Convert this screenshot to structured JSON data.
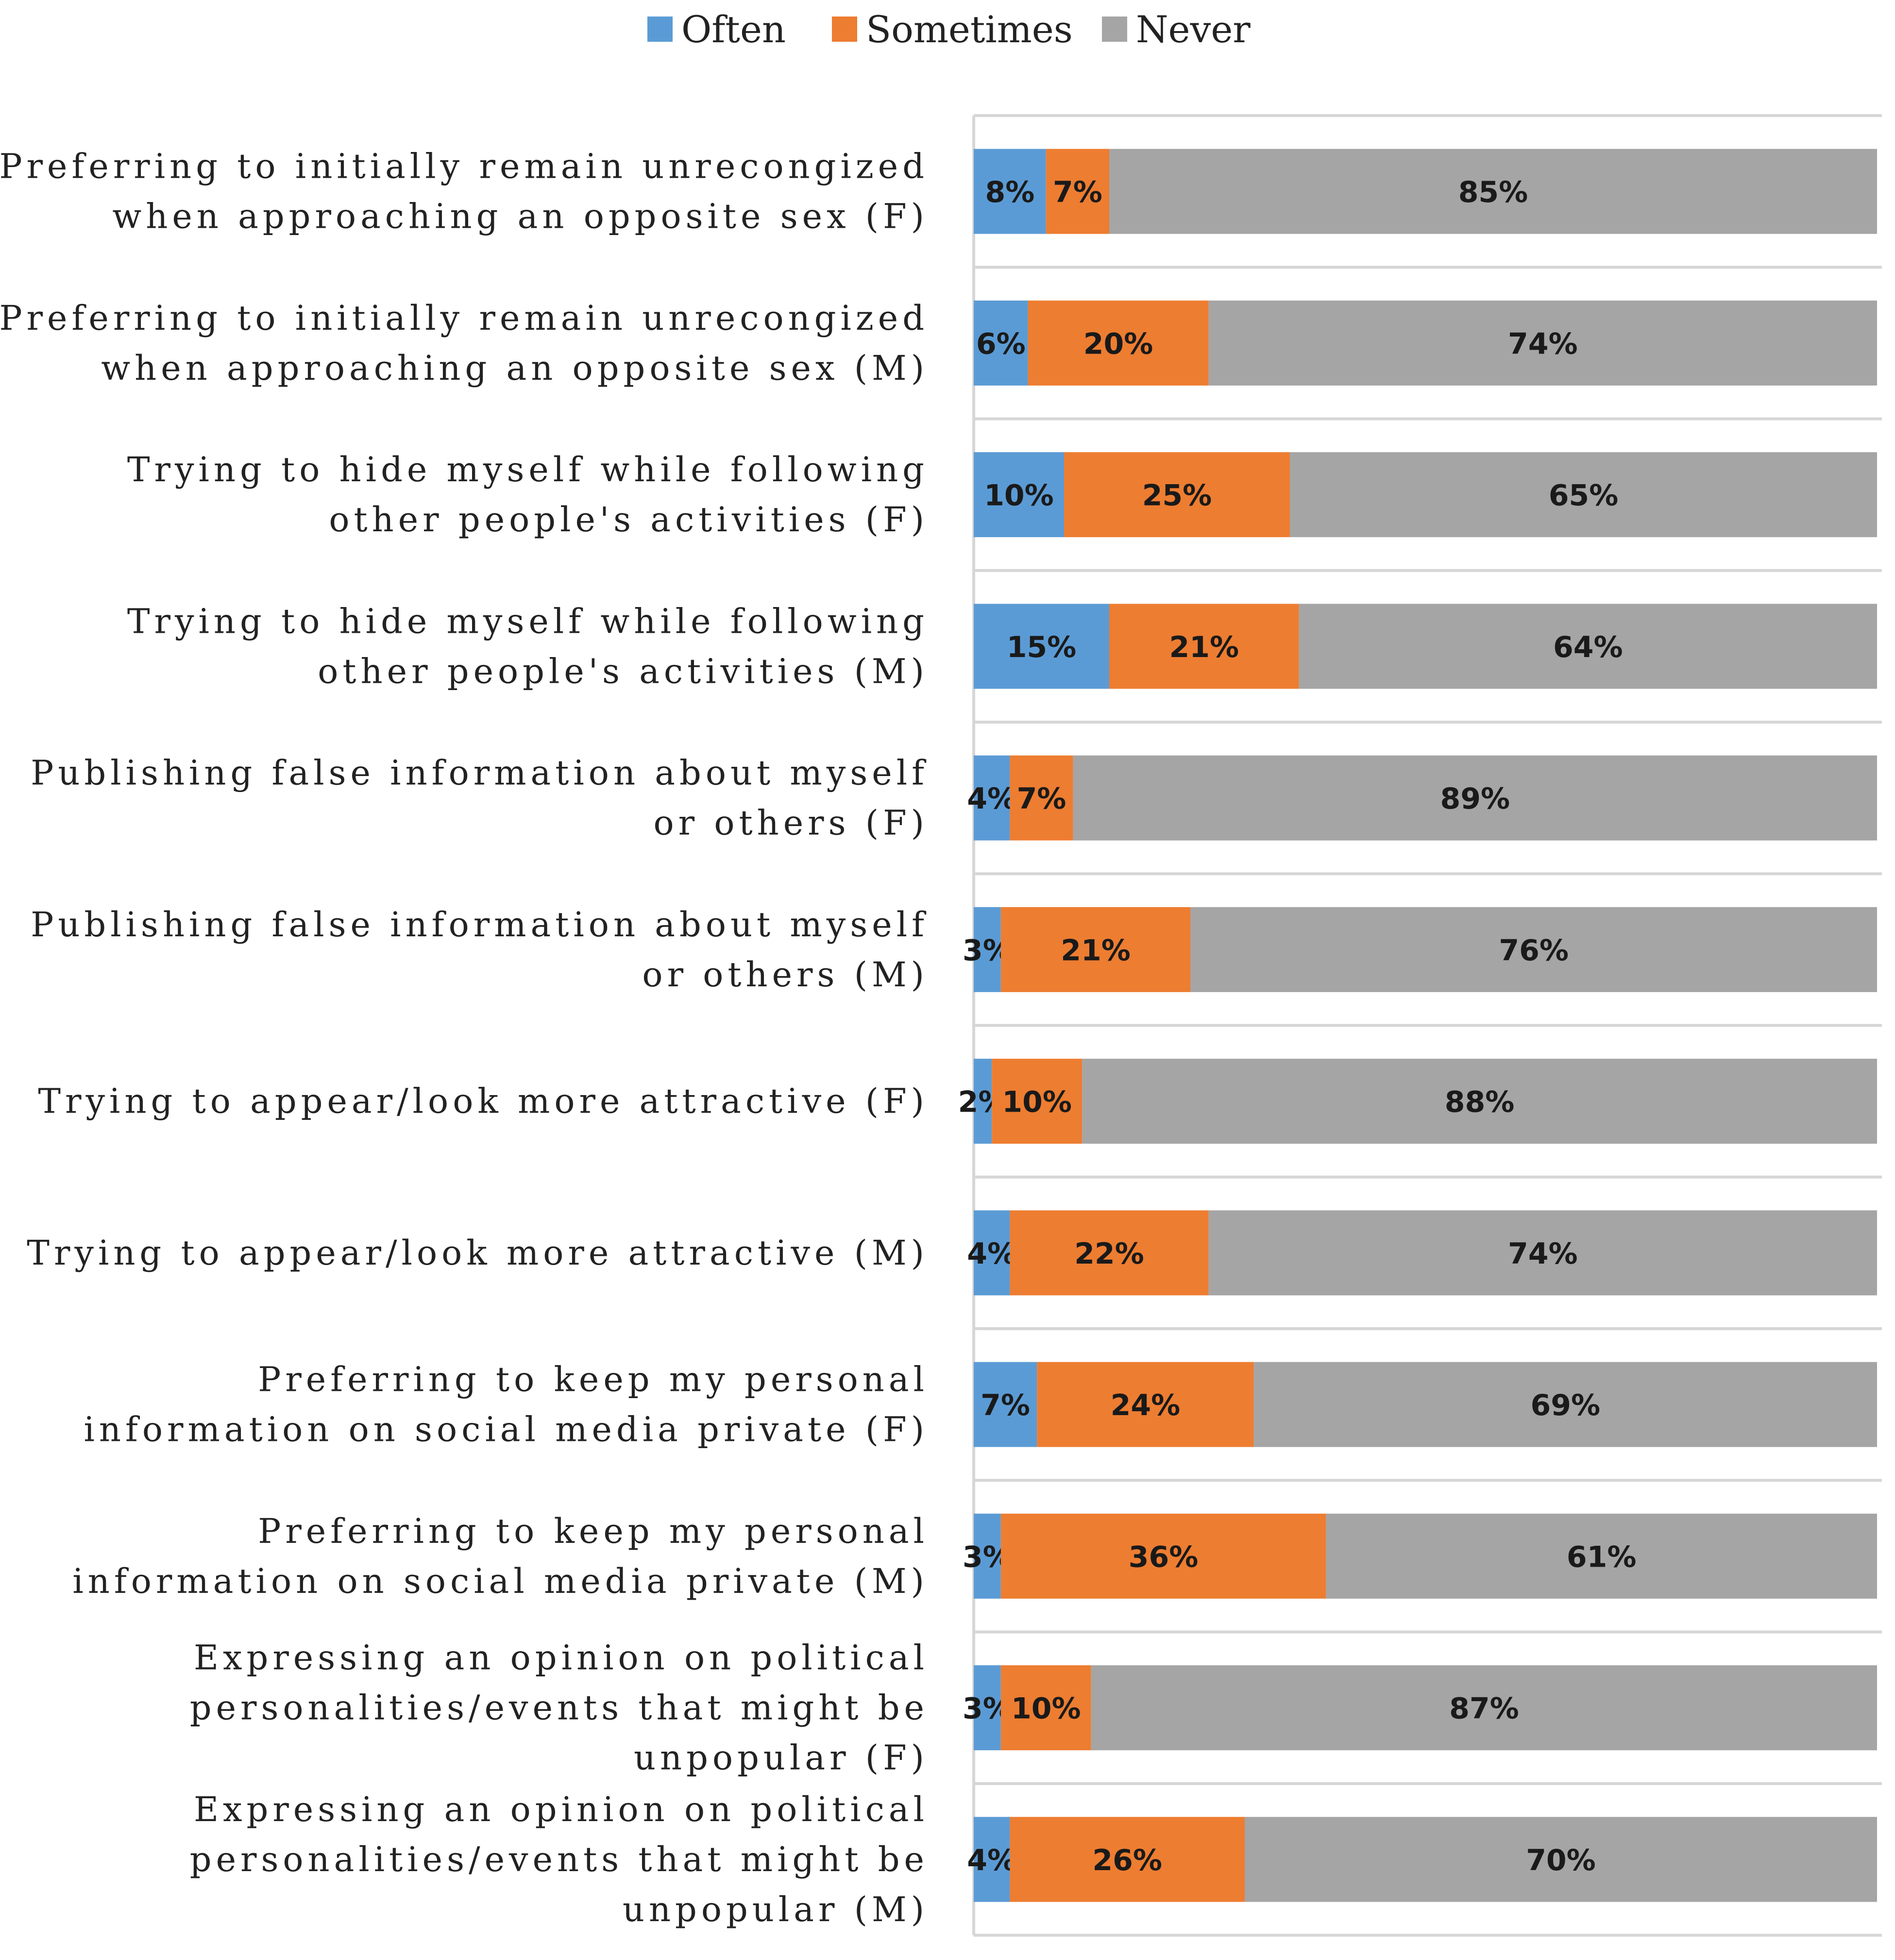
{
  "chart_data": {
    "type": "bar",
    "orientation": "horizontal",
    "stacked": true,
    "legend_position": "top",
    "xlim": [
      0,
      100
    ],
    "categories": [
      [
        "Preferring to initially remain unrecongized",
        "when approaching an opposite sex (F)"
      ],
      [
        "Preferring to initially remain unrecongized",
        "when approaching an opposite sex (M)"
      ],
      [
        "Trying to hide myself while following",
        "other people's activities (F)"
      ],
      [
        "Trying to hide myself while following",
        "other people's activities (M)"
      ],
      [
        "Publishing false information about myself",
        "or others (F)"
      ],
      [
        "Publishing false information about myself",
        "or others (M)"
      ],
      [
        "Trying to appear/look more attractive (F)"
      ],
      [
        "Trying to appear/look more attractive (M)"
      ],
      [
        "Preferring to keep my personal",
        "information on social media private (F)"
      ],
      [
        "Preferring to keep my personal",
        "information on social media private (M)"
      ],
      [
        "Expressing an opinion on political",
        "personalities/events that might be",
        "unpopular (F)"
      ],
      [
        "Expressing an opinion on political",
        "personalities/events that might be",
        "unpopular (M)"
      ]
    ],
    "series": [
      {
        "name": "Often",
        "color": "#5b9bd5",
        "values": [
          8,
          6,
          10,
          15,
          4,
          3,
          2,
          4,
          7,
          3,
          3,
          4
        ]
      },
      {
        "name": "Sometimes",
        "color": "#ed7d31",
        "values": [
          7,
          20,
          25,
          21,
          7,
          21,
          10,
          22,
          24,
          36,
          10,
          26
        ]
      },
      {
        "name": "Never",
        "color": "#a5a5a5",
        "values": [
          85,
          74,
          65,
          64,
          89,
          76,
          88,
          74,
          69,
          61,
          87,
          70
        ]
      }
    ],
    "value_suffix": "%"
  }
}
